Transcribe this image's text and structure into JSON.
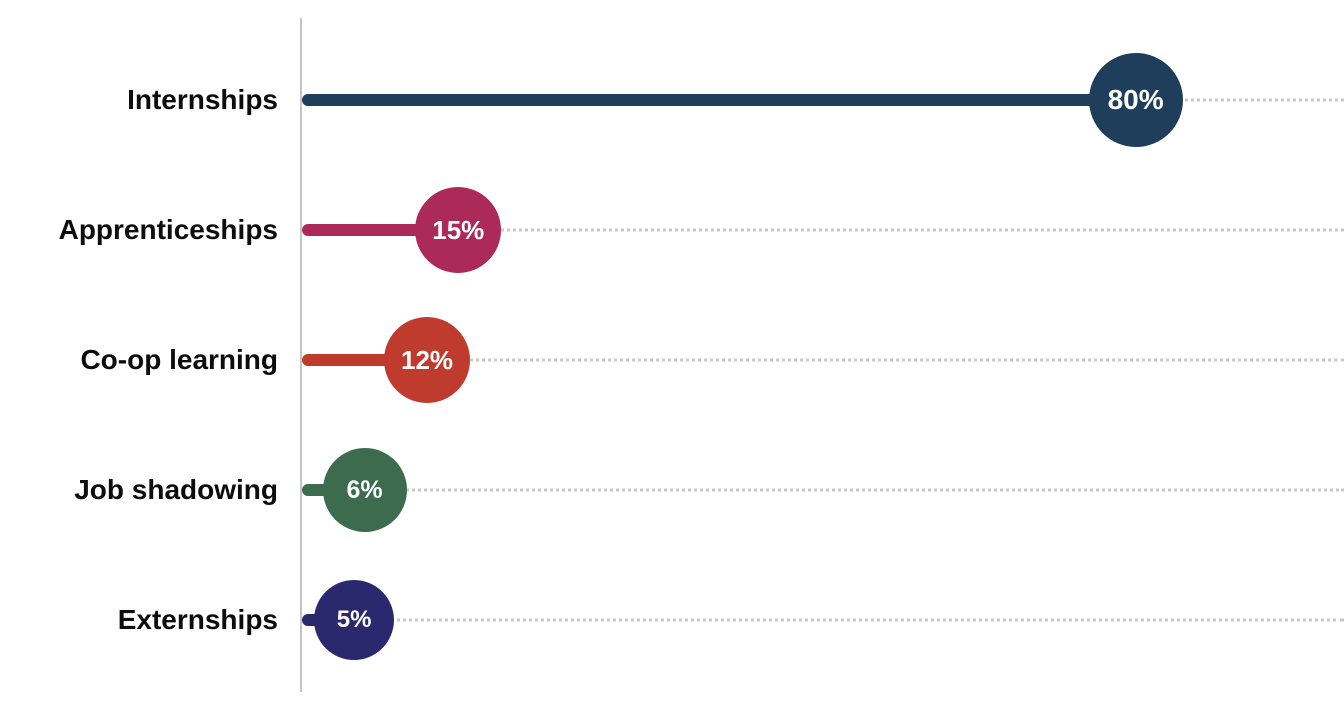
{
  "chart_data": {
    "type": "bar",
    "variant": "lollipop",
    "orientation": "horizontal",
    "categories": [
      "Internships",
      "Apprenticeships",
      "Co-op learning",
      "Job shadowing",
      "Externships"
    ],
    "values": [
      80,
      15,
      12,
      6,
      5
    ],
    "value_labels": [
      "80%",
      "15%",
      "12%",
      "6%",
      "5%"
    ],
    "colors": [
      "#1e3e5c",
      "#ab2a58",
      "#bf3b2e",
      "#3d6b4e",
      "#2b296d"
    ],
    "marker_sizes": [
      94,
      86,
      86,
      84,
      80
    ],
    "stem_thickness": 12,
    "title": "",
    "xlabel": "",
    "ylabel": "",
    "xlim": [
      0,
      100
    ],
    "grid": "dotted-horizontal",
    "gridline_color": "#c9c9c9",
    "axis_line_color": "#c4c4c4",
    "legend": "none"
  }
}
